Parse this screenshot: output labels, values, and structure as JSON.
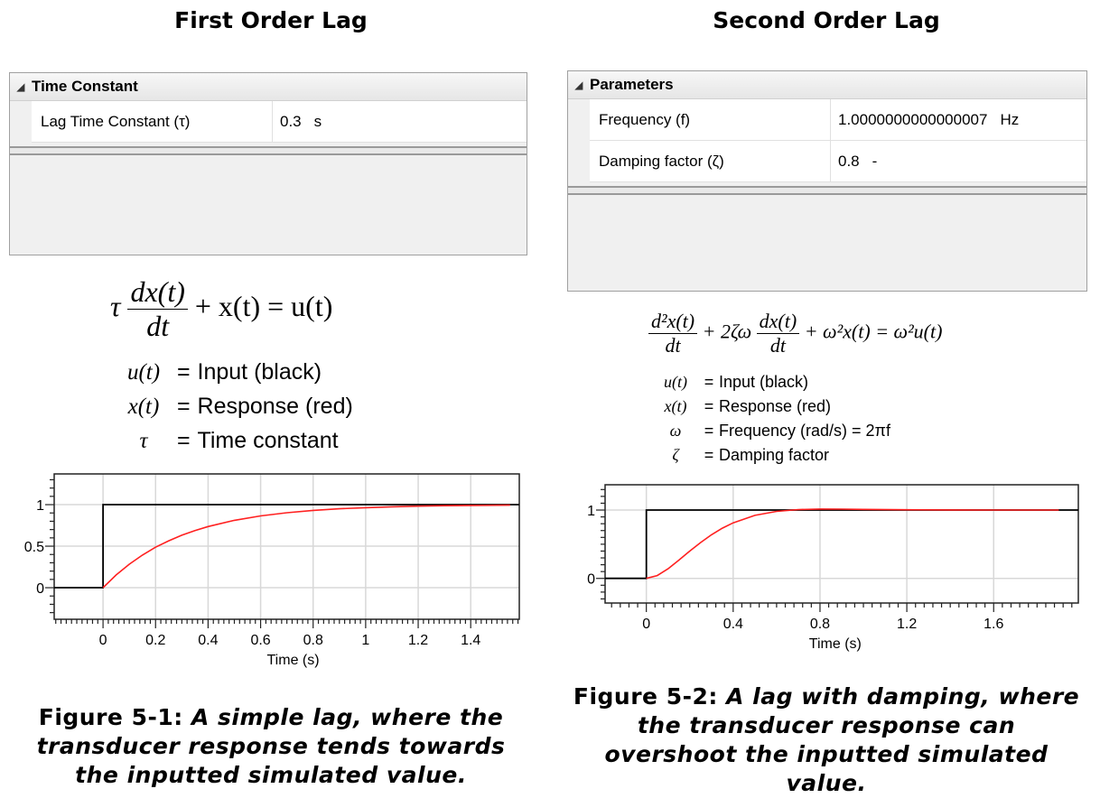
{
  "left": {
    "title": "First Order Lag",
    "grid": {
      "section": "Time Constant",
      "rows": [
        {
          "label": "Lag Time Constant (τ)",
          "value": "0.3",
          "unit": "s"
        }
      ]
    },
    "equation": {
      "main_tau": "τ",
      "main_num": "dx(t)",
      "main_den": "dt",
      "main_rest": "+ x(t) = u(t)",
      "legend": [
        {
          "sym": "u(t)",
          "eq": "=",
          "desc": "Input (black)"
        },
        {
          "sym": "x(t)",
          "eq": "=",
          "desc": "Response (red)"
        },
        {
          "sym": "τ",
          "eq": "=",
          "desc": "Time constant"
        }
      ]
    },
    "caption": {
      "label": "Figure 5-1:",
      "lines": [
        "A simple lag, where the",
        "transducer response tends towards",
        "the inputted simulated value."
      ]
    }
  },
  "right": {
    "title": "Second Order Lag",
    "grid": {
      "section": "Parameters",
      "rows": [
        {
          "label": "Frequency (f)",
          "value": "1.0000000000000007",
          "unit": "Hz"
        },
        {
          "label": "Damping factor (ζ)",
          "value": "0.8",
          "unit": "-"
        }
      ]
    },
    "equation": {
      "num1": "d²x(t)",
      "den1": "dt",
      "mid": "+ 2ζω",
      "num2": "dx(t)",
      "den2": "dt",
      "rest": "+ ω²x(t) = ω²u(t)",
      "legend": [
        {
          "sym": "u(t)",
          "eq": "=",
          "desc": "Input (black)"
        },
        {
          "sym": "x(t)",
          "eq": "=",
          "desc": "Response (red)"
        },
        {
          "sym": "ω",
          "eq": "=",
          "desc": "Frequency (rad/s) = 2πf"
        },
        {
          "sym": "ζ",
          "eq": "=",
          "desc": "Damping factor"
        }
      ]
    },
    "caption": {
      "label": "Figure 5-2:",
      "lines": [
        "A lag with damping, where",
        "the transducer response can",
        "overshoot the inputted simulated",
        "value."
      ]
    }
  },
  "chart_data": [
    {
      "type": "line",
      "xlabel": "Time (s)",
      "xlim": [
        -0.186,
        1.585
      ],
      "ylim": [
        -0.38,
        1.37
      ],
      "xticks": [
        "0",
        "0.2",
        "0.4",
        "0.6",
        "0.8",
        "1",
        "1.2",
        "1.4"
      ],
      "yticks": [
        "0",
        "0.5",
        "1"
      ],
      "grid": true,
      "colors": {
        "input": "#000000",
        "response": "#ff2020"
      },
      "series": [
        {
          "x": [
            -0.186,
            0,
            0,
            1.585
          ],
          "y": [
            0,
            0,
            1,
            1
          ]
        },
        {
          "x": [
            0,
            0.05,
            0.1,
            0.15,
            0.2,
            0.25,
            0.3,
            0.35,
            0.4,
            0.5,
            0.6,
            0.7,
            0.8,
            0.9,
            1.0,
            1.1,
            1.2,
            1.3,
            1.4,
            1.5,
            1.55
          ],
          "y": [
            0,
            0.154,
            0.283,
            0.393,
            0.487,
            0.565,
            0.632,
            0.689,
            0.736,
            0.811,
            0.865,
            0.903,
            0.931,
            0.95,
            0.964,
            0.974,
            0.982,
            0.987,
            0.991,
            0.993,
            0.994
          ]
        }
      ]
    },
    {
      "type": "line",
      "xlabel": "Time (s)",
      "xlim": [
        -0.19,
        1.99
      ],
      "ylim": [
        -0.36,
        1.37
      ],
      "xticks": [
        "0",
        "0.4",
        "0.8",
        "1.2",
        "1.6"
      ],
      "yticks": [
        "0",
        "1"
      ],
      "grid": true,
      "colors": {
        "input": "#000000",
        "response": "#ff2020"
      },
      "series": [
        {
          "x": [
            -0.19,
            0,
            0,
            1.99
          ],
          "y": [
            0,
            0,
            1,
            1
          ]
        },
        {
          "x": [
            0,
            0.05,
            0.1,
            0.15,
            0.2,
            0.25,
            0.3,
            0.35,
            0.4,
            0.5,
            0.6,
            0.7,
            0.8,
            0.9,
            1.0,
            1.2,
            1.4,
            1.6,
            1.8,
            1.9
          ],
          "y": [
            0,
            0.042,
            0.14,
            0.267,
            0.399,
            0.525,
            0.639,
            0.735,
            0.813,
            0.922,
            0.981,
            1.007,
            1.015,
            1.014,
            1.01,
            1.004,
            1.001,
            1.0,
            1.0,
            1.0
          ]
        }
      ]
    }
  ]
}
